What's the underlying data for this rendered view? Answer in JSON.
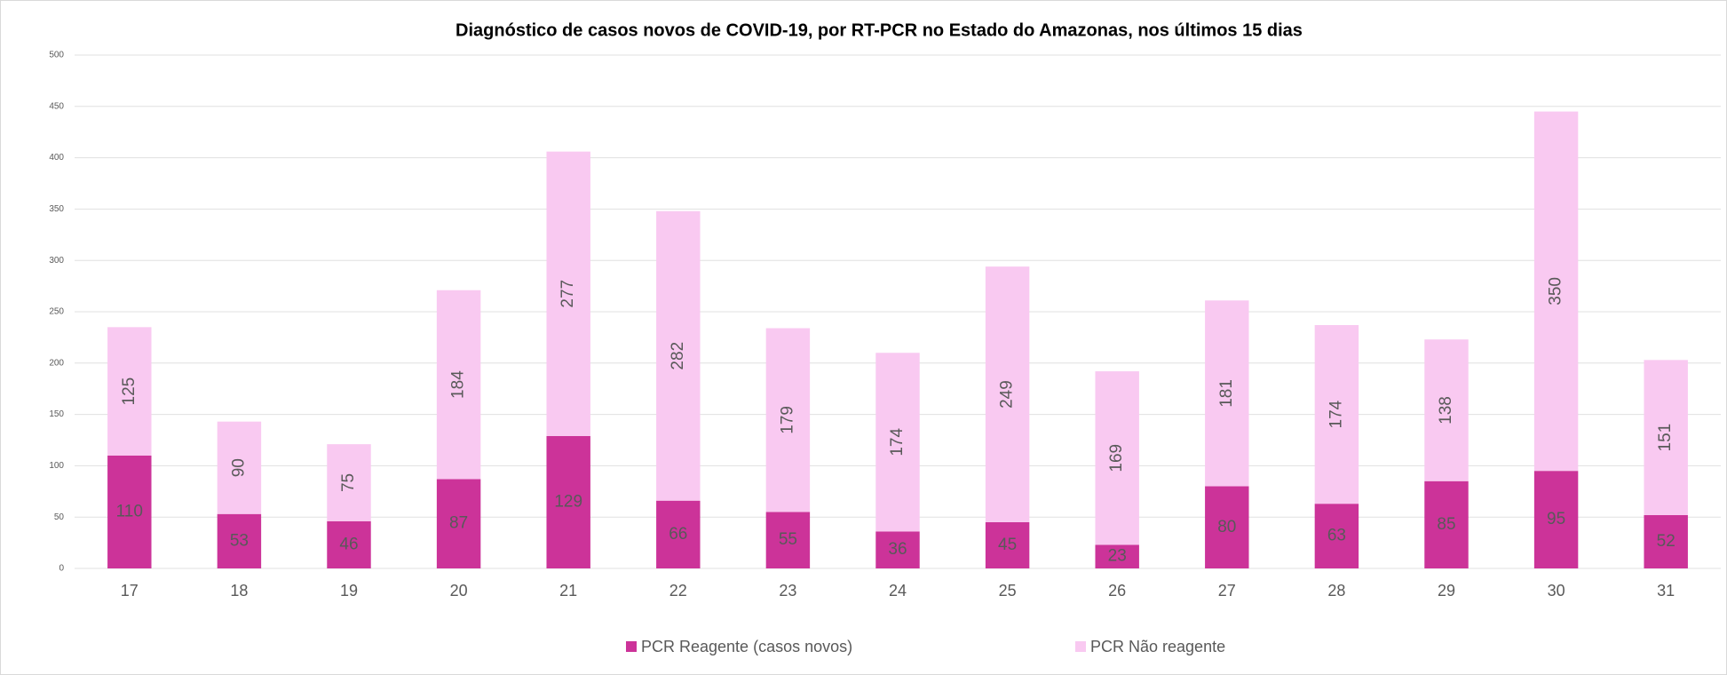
{
  "chart_data": {
    "type": "stacked_bar",
    "title": "Diagnóstico de casos novos de COVID-19, por RT-PCR no Estado do Amazonas, nos últimos 15 dias",
    "categories": [
      "17",
      "18",
      "19",
      "20",
      "21",
      "22",
      "23",
      "24",
      "25",
      "26",
      "27",
      "28",
      "29",
      "30",
      "31"
    ],
    "series": [
      {
        "name": "PCR Reagente (casos novos)",
        "color": "#cc3399",
        "values": [
          110,
          53,
          46,
          87,
          129,
          66,
          55,
          36,
          45,
          23,
          80,
          63,
          85,
          95,
          52
        ]
      },
      {
        "name": "PCR Não reagente",
        "color": "#f9c9f1",
        "values": [
          125,
          90,
          75,
          184,
          277,
          282,
          179,
          174,
          249,
          169,
          181,
          174,
          138,
          350,
          151
        ]
      }
    ],
    "ylim": [
      0,
      500
    ],
    "yticks": [
      0,
      50,
      100,
      150,
      200,
      250,
      300,
      350,
      400,
      450,
      500
    ],
    "grid": true,
    "legend": "bottom"
  }
}
